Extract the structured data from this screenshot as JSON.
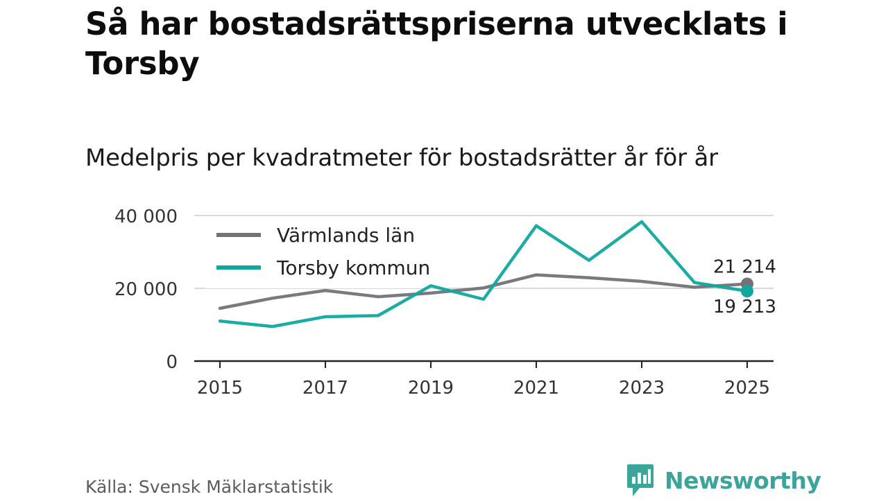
{
  "header": {
    "title": "Så har bostadsrättspriserna utvecklats i Torsby",
    "subtitle": "Medelpris per kvadratmeter för bostadsrätter år för år"
  },
  "footer": {
    "source": "Källa: Svensk Mäklarstatistik",
    "brand": "Newsworthy",
    "brand_icon": "chat-bar-chart-icon"
  },
  "colors": {
    "varmland": "#737278",
    "torsby": "#0fa89e",
    "grid": "#d9d9d9",
    "axis": "#222222",
    "brand": "#3ca59a"
  },
  "chart_data": {
    "type": "line",
    "title": "Medelpris per kvadratmeter för bostadsrätter år för år",
    "xlabel": "",
    "ylabel": "",
    "x": [
      2015,
      2016,
      2017,
      2018,
      2019,
      2020,
      2021,
      2022,
      2023,
      2024,
      2025
    ],
    "xticks": [
      "2015",
      "2017",
      "2019",
      "2021",
      "2023",
      "2025"
    ],
    "yticks": [
      {
        "value": 0,
        "label": "0"
      },
      {
        "value": 20000,
        "label": "20 000"
      },
      {
        "value": 40000,
        "label": "40 000"
      }
    ],
    "ylim": [
      0,
      40000
    ],
    "grid": true,
    "legend_position": "top-left",
    "series": [
      {
        "name": "Värmlands län",
        "key": "varmland",
        "values": [
          14500,
          17300,
          19400,
          17700,
          18700,
          20100,
          23700,
          22900,
          21900,
          20300,
          21214
        ],
        "end_label": "21 214"
      },
      {
        "name": "Torsby kommun",
        "key": "torsby",
        "values": [
          11000,
          9500,
          12200,
          12500,
          20700,
          17000,
          37200,
          27700,
          38300,
          21600,
          19213
        ],
        "end_label": "19 213"
      }
    ]
  }
}
